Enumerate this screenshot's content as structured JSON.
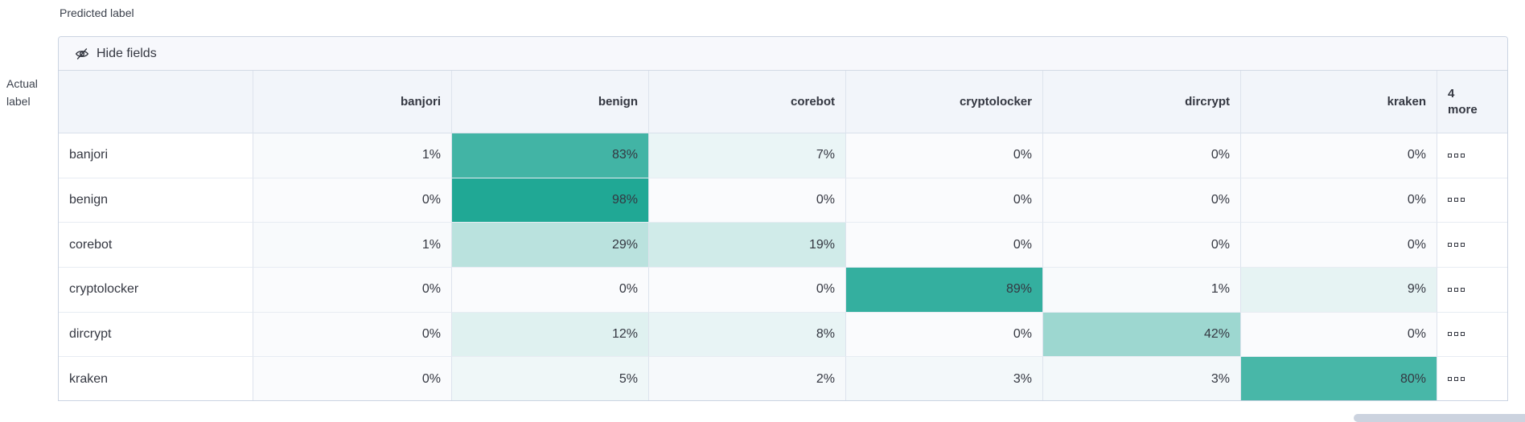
{
  "axis": {
    "predicted_label": "Predicted label",
    "actual_label_line1": "Actual",
    "actual_label_line2": "label"
  },
  "toolbar": {
    "hide_fields_label": "Hide fields",
    "hide_fields_icon": "eye-closed-icon"
  },
  "chart_data": {
    "type": "heatmap",
    "title": "",
    "xlabel": "Predicted label",
    "ylabel": "Actual label",
    "categories": [
      "banjori",
      "benign",
      "corebot",
      "cryptolocker",
      "dircrypt",
      "kraken"
    ],
    "series": [
      {
        "name": "banjori",
        "values": [
          1,
          83,
          7,
          0,
          0,
          0
        ]
      },
      {
        "name": "benign",
        "values": [
          0,
          98,
          0,
          0,
          0,
          0
        ]
      },
      {
        "name": "corebot",
        "values": [
          1,
          29,
          19,
          0,
          0,
          0
        ]
      },
      {
        "name": "cryptolocker",
        "values": [
          0,
          0,
          0,
          89,
          1,
          9
        ]
      },
      {
        "name": "dircrypt",
        "values": [
          0,
          12,
          8,
          0,
          42,
          0
        ]
      },
      {
        "name": "kraken",
        "values": [
          0,
          5,
          2,
          3,
          3,
          80
        ]
      }
    ]
  },
  "matrix": {
    "columns": [
      "banjori",
      "benign",
      "corebot",
      "cryptolocker",
      "dircrypt",
      "kraken"
    ],
    "more_header": {
      "count": "4",
      "word": "more"
    },
    "rows": [
      {
        "label": "banjori",
        "values": [
          1,
          83,
          7,
          0,
          0,
          0
        ]
      },
      {
        "label": "benign",
        "values": [
          0,
          98,
          0,
          0,
          0,
          0
        ]
      },
      {
        "label": "corebot",
        "values": [
          1,
          29,
          19,
          0,
          0,
          0
        ]
      },
      {
        "label": "cryptolocker",
        "values": [
          0,
          0,
          0,
          89,
          1,
          9
        ]
      },
      {
        "label": "dircrypt",
        "values": [
          0,
          12,
          8,
          0,
          42,
          0
        ]
      },
      {
        "label": "kraken",
        "values": [
          0,
          5,
          2,
          3,
          3,
          80
        ]
      }
    ],
    "cell_suffix": "%",
    "heat_base_color": "#1ca693",
    "zero_cell_color": "#fafbfd"
  },
  "colors": {
    "panel_border": "#cbd4e2",
    "header_bg": "#f2f5fa",
    "toolbar_bg": "#f7f8fc",
    "text": "#343741",
    "scrollbar": "#ccd3df"
  }
}
